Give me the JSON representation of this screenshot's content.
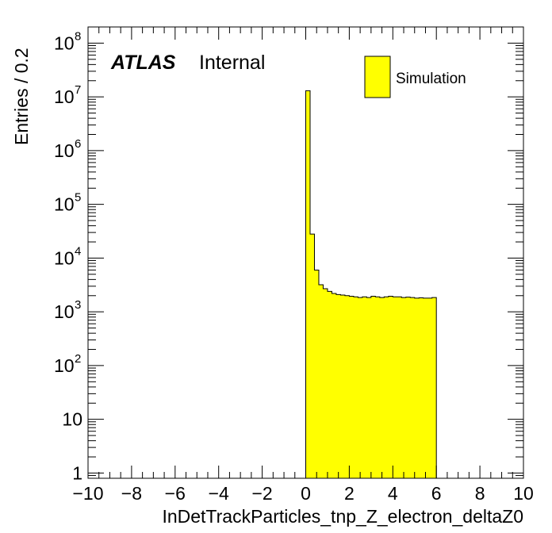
{
  "chart_data": {
    "type": "histogram",
    "title": "",
    "xlabel": "InDetTrackParticles_tnp_Z_electron_deltaZ0",
    "ylabel": "Entries / 0.2",
    "xlim": [
      -10,
      10
    ],
    "ylim": [
      0.8,
      200000000
    ],
    "yscale": "log",
    "bin_width": 0.2,
    "x_ticks": [
      "−10",
      "−8",
      "−6",
      "−4",
      "−2",
      "0",
      "2",
      "4",
      "6",
      "8",
      "10"
    ],
    "x_tick_values": [
      -10,
      -8,
      -6,
      -4,
      -2,
      0,
      2,
      4,
      6,
      8,
      10
    ],
    "y_ticks": [
      {
        "value": 1,
        "base": "1",
        "exp": ""
      },
      {
        "value": 10,
        "base": "10",
        "exp": ""
      },
      {
        "value": 100,
        "base": "10",
        "exp": "2"
      },
      {
        "value": 1000,
        "base": "10",
        "exp": "3"
      },
      {
        "value": 10000,
        "base": "10",
        "exp": "4"
      },
      {
        "value": 100000,
        "base": "10",
        "exp": "5"
      },
      {
        "value": 1000000,
        "base": "10",
        "exp": "6"
      },
      {
        "value": 10000000,
        "base": "10",
        "exp": "7"
      },
      {
        "value": 100000000,
        "base": "10",
        "exp": "8"
      }
    ],
    "series": [
      {
        "name": "Simulation",
        "color": "#ffff00",
        "bin_edges_start": 0.0,
        "values": [
          13000000,
          28000,
          6000,
          3200,
          2700,
          2400,
          2200,
          2100,
          2050,
          2000,
          1950,
          1900,
          1850,
          1900,
          1850,
          1950,
          1900,
          1850,
          1900,
          1950,
          1900,
          1900,
          1850,
          1880,
          1850,
          1800,
          1820,
          1800,
          1800,
          1850
        ]
      }
    ],
    "legend": {
      "position": "top-right",
      "entries": [
        "Simulation"
      ]
    },
    "grid": false
  },
  "labels": {
    "atlas": "ATLAS",
    "internal": "Internal",
    "legend_entry": "Simulation"
  },
  "colors": {
    "fill": "#ffff00",
    "line": "#000000",
    "background": "#ffffff"
  }
}
